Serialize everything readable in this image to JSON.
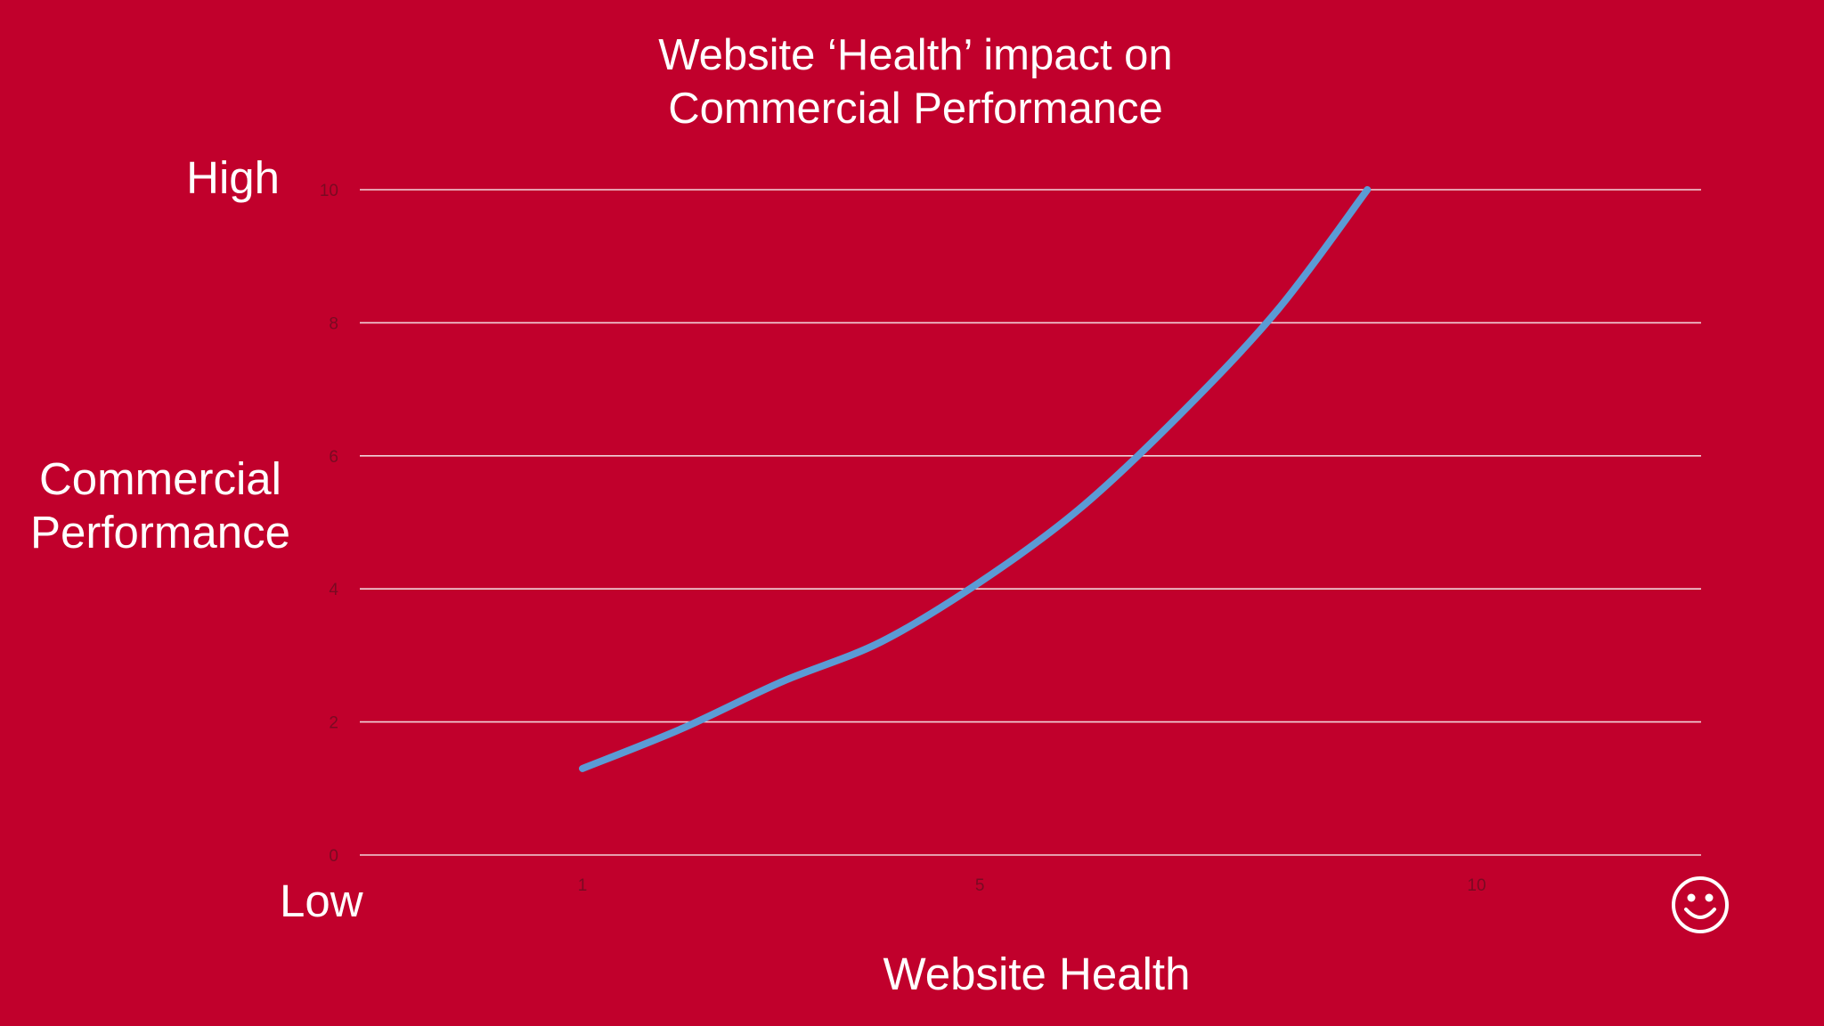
{
  "slide": {
    "title_line1": "Website ‘Health’ impact on",
    "title_line2": "Commercial Performance",
    "high_label": "High",
    "low_label": "Low",
    "ylabel_line1": "Commercial",
    "ylabel_line2": "Performance",
    "xlabel": "Website Health",
    "smiley_icon": "smiley-face-icon",
    "background_color": "#c1002c",
    "text_color": "#ffffff",
    "curve_color": "#5b9bd5",
    "grid_color": "#f2d4da"
  },
  "chart_data": {
    "type": "line",
    "title": "Website ‘Health’ impact on Commercial Performance",
    "xlabel": "Website Health",
    "ylabel": "Commercial Performance",
    "x_ticks": [
      1,
      5,
      10
    ],
    "y_ticks": [
      0,
      2,
      4,
      6,
      8,
      10
    ],
    "xlim": [
      -1,
      13
    ],
    "ylim": [
      0,
      10
    ],
    "grid": "horizontal",
    "series": [
      {
        "x": [
          1,
          2,
          3,
          4,
          5,
          6,
          7,
          8,
          8.9
        ],
        "y": [
          1.3,
          1.9,
          2.6,
          3.2,
          4.1,
          5.2,
          6.6,
          8.2,
          10
        ]
      }
    ]
  }
}
